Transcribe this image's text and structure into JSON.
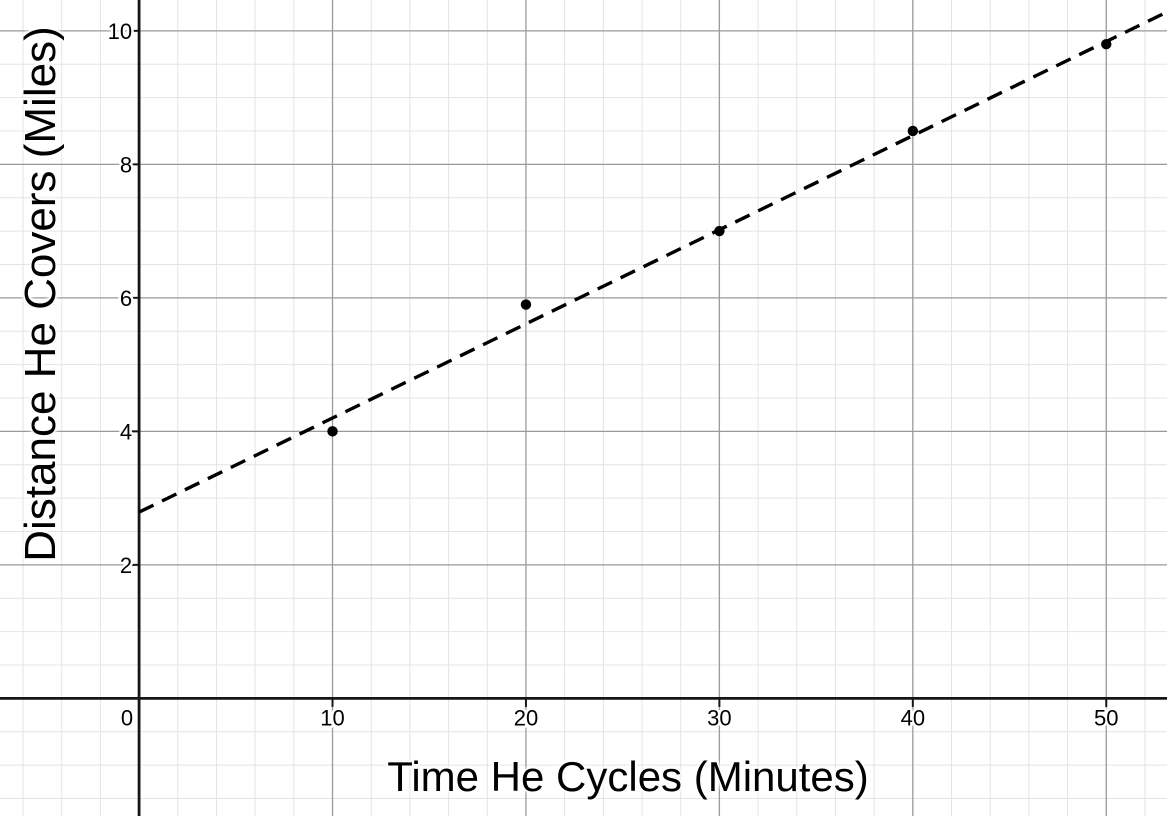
{
  "chart_data": {
    "type": "scatter",
    "title": "",
    "xlabel": "Time He Cycles (Minutes)",
    "ylabel": "Distance He Covers (Miles)",
    "points": [
      {
        "x": 10,
        "y": 4.0
      },
      {
        "x": 20,
        "y": 5.9
      },
      {
        "x": 30,
        "y": 7.0
      },
      {
        "x": 40,
        "y": 8.5
      },
      {
        "x": 50,
        "y": 9.8
      }
    ],
    "trendline": {
      "style": "dashed",
      "slope": 0.141,
      "intercept": 2.79,
      "x_start": 0
    },
    "x_ticks": [
      0,
      10,
      20,
      30,
      40,
      50
    ],
    "y_ticks": [
      2,
      4,
      6,
      8,
      10
    ],
    "xlim": [
      -7.19,
      53.14
    ],
    "ylim": [
      -1.762,
      10.462
    ],
    "x_minor_step": 2,
    "x_major_step": 10,
    "y_minor_step": 0.5,
    "y_major_step": 2,
    "grid": true,
    "legend": "none"
  },
  "colors": {
    "background": "#ffffff",
    "grid_minor": "#e4e4e4",
    "grid_major": "#9a9a9a",
    "axis": "#161616",
    "series": "#000000"
  }
}
